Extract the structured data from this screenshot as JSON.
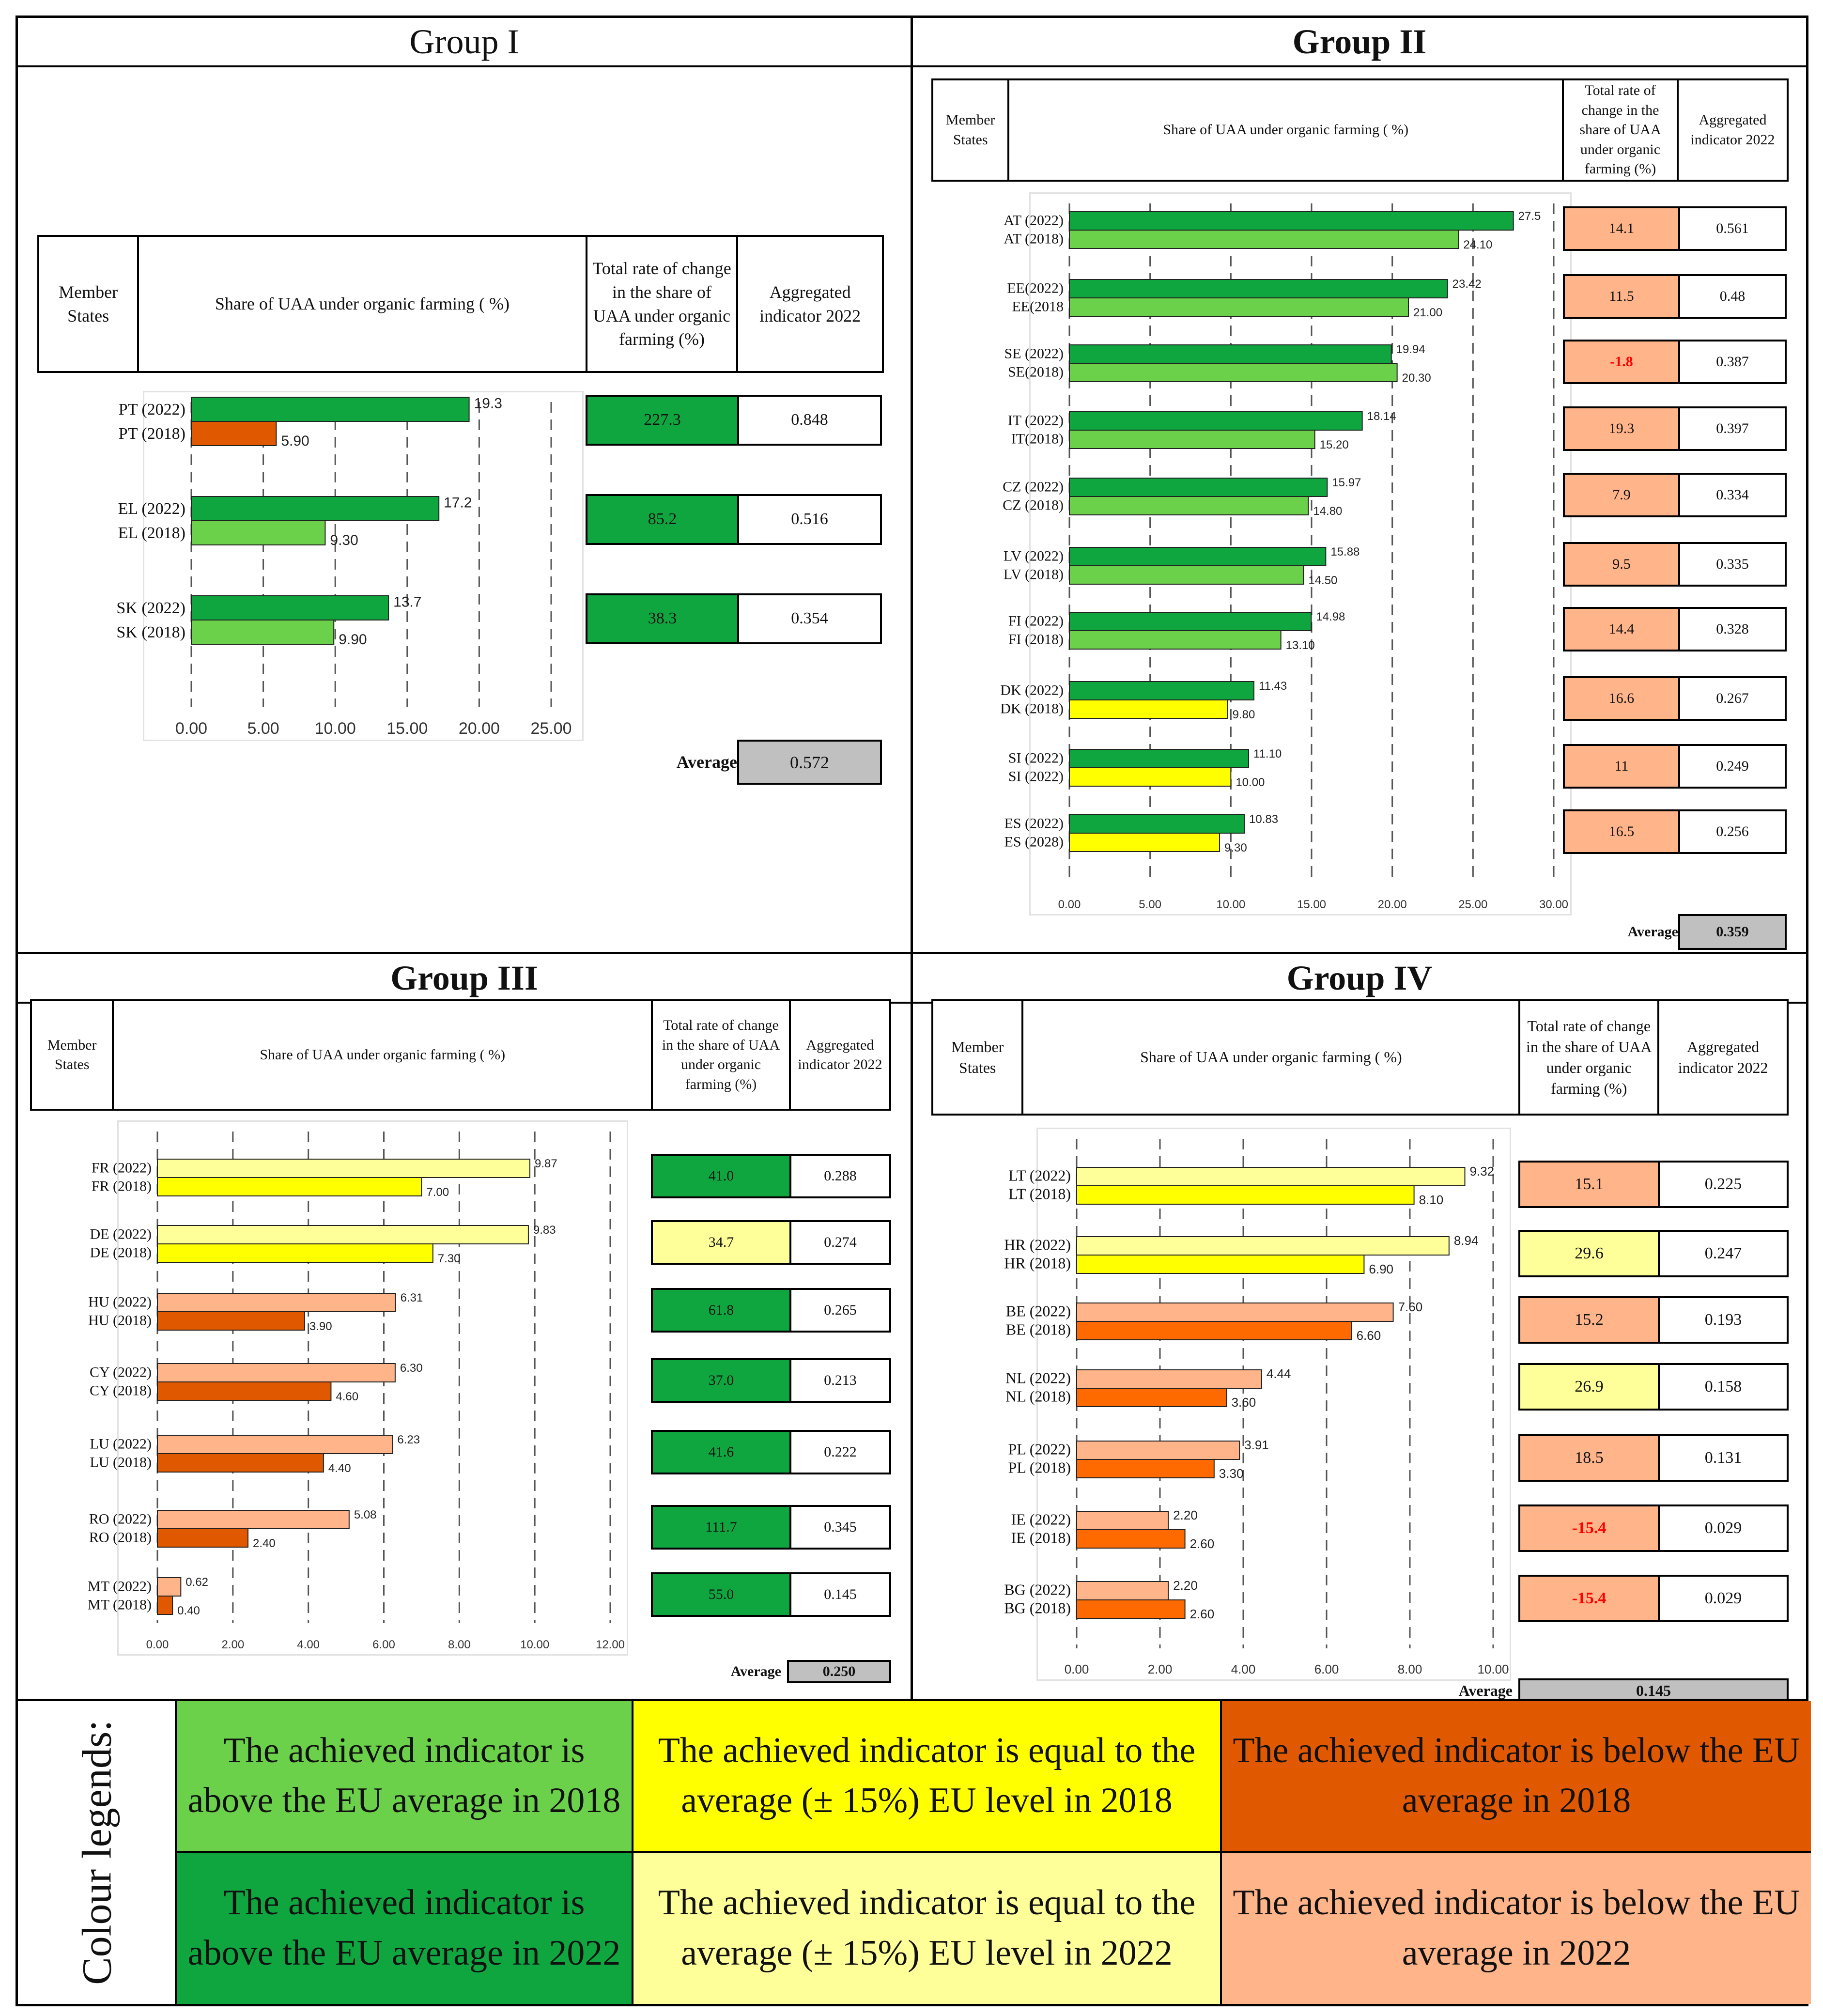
{
  "colors": {
    "above_2018": "#6CD14A",
    "above_2022": "#0FA640",
    "equal_2018": "#FFFF00",
    "equal_2022": "#FFFF99",
    "below_2018": "#E05800",
    "below_2018_g4": "#FF6A00",
    "below_2022": "#FFB489",
    "average_box": "#C0C0C0",
    "negative_text": "#FF0000"
  },
  "table_header": {
    "member": "Member States",
    "share": "Share of UAA under organic farming ( %)",
    "rate": "Total rate of change in the share of UAA under organic farming (%)",
    "aggregated": "Aggregated indicator 2022"
  },
  "chart_data": [
    {
      "type": "bar",
      "title": "Group I",
      "xlim": [
        0,
        25
      ],
      "xticks": [
        "0.00",
        "5.00",
        "10.00",
        "15.00",
        "20.00",
        "25.00"
      ],
      "categories": [
        {
          "l2022": "PT (2022)",
          "l2018": "PT (2018)",
          "v2022": 19.3,
          "v2018": 5.9,
          "t2022": "19.3",
          "t2018": "5.90",
          "c2022": "above_2022",
          "c2018": "below_2018",
          "rate": "227.3",
          "rate_color": "above_2022",
          "agg": "0.848"
        },
        {
          "l2022": "EL (2022)",
          "l2018": "EL (2018)",
          "v2022": 17.2,
          "v2018": 9.3,
          "t2022": "17.2",
          "t2018": "9.30",
          "c2022": "above_2022",
          "c2018": "above_2018",
          "rate": "85.2",
          "rate_color": "above_2022",
          "agg": "0.516"
        },
        {
          "l2022": "SK (2022)",
          "l2018": "SK (2018)",
          "v2022": 13.7,
          "v2018": 9.9,
          "t2022": "13.7",
          "t2018": "9.90",
          "c2022": "above_2022",
          "c2018": "above_2018",
          "rate": "38.3",
          "rate_color": "above_2022",
          "agg": "0.354"
        }
      ],
      "average_label": "Average",
      "average": "0.572"
    },
    {
      "type": "bar",
      "title": "Group II",
      "xlim": [
        0,
        30
      ],
      "xticks": [
        "0.00",
        "5.00",
        "10.00",
        "15.00",
        "20.00",
        "25.00",
        "30.00"
      ],
      "categories": [
        {
          "l2022": "AT (2022)",
          "l2018": "AT (2018)",
          "v2022": 27.5,
          "v2018": 24.1,
          "t2022": "27.5",
          "t2018": "24.10",
          "c2022": "above_2022",
          "c2018": "above_2018",
          "rate": "14.1",
          "rate_color": "below_2022",
          "agg": "0.561"
        },
        {
          "l2022": "EE(2022)",
          "l2018": "EE(2018",
          "v2022": 23.42,
          "v2018": 21.0,
          "t2022": "23.42",
          "t2018": "21.00",
          "c2022": "above_2022",
          "c2018": "above_2018",
          "rate": "11.5",
          "rate_color": "below_2022",
          "agg": "0.48"
        },
        {
          "l2022": "SE (2022)",
          "l2018": "SE(2018)",
          "v2022": 19.94,
          "v2018": 20.3,
          "t2022": "19.94",
          "t2018": "20.30",
          "c2022": "above_2022",
          "c2018": "above_2018",
          "rate": "-1.8",
          "rate_color": "below_2022",
          "agg": "0.387"
        },
        {
          "l2022": "IT (2022)",
          "l2018": "IT(2018)",
          "v2022": 18.14,
          "v2018": 15.2,
          "t2022": "18.14",
          "t2018": "15.20",
          "c2022": "above_2022",
          "c2018": "above_2018",
          "rate": "19.3",
          "rate_color": "below_2022",
          "agg": "0.397"
        },
        {
          "l2022": "CZ (2022)",
          "l2018": "CZ (2018)",
          "v2022": 15.97,
          "v2018": 14.8,
          "t2022": "15.97",
          "t2018": "14.80",
          "c2022": "above_2022",
          "c2018": "above_2018",
          "rate": "7.9",
          "rate_color": "below_2022",
          "agg": "0.334"
        },
        {
          "l2022": "LV (2022)",
          "l2018": "LV (2018)",
          "v2022": 15.88,
          "v2018": 14.5,
          "t2022": "15.88",
          "t2018": "14.50",
          "c2022": "above_2022",
          "c2018": "above_2018",
          "rate": "9.5",
          "rate_color": "below_2022",
          "agg": "0.335"
        },
        {
          "l2022": "FI (2022)",
          "l2018": "FI (2018)",
          "v2022": 14.98,
          "v2018": 13.1,
          "t2022": "14.98",
          "t2018": "13.10",
          "c2022": "above_2022",
          "c2018": "above_2018",
          "rate": "14.4",
          "rate_color": "below_2022",
          "agg": "0.328"
        },
        {
          "l2022": "DK (2022)",
          "l2018": "DK (2018)",
          "v2022": 11.43,
          "v2018": 9.8,
          "t2022": "11.43",
          "t2018": "9.80",
          "c2022": "above_2022",
          "c2018": "equal_2018",
          "rate": "16.6",
          "rate_color": "below_2022",
          "agg": "0.267"
        },
        {
          "l2022": "SI (2022)",
          "l2018": "SI (2022)",
          "v2022": 11.1,
          "v2018": 10.0,
          "t2022": "11.10",
          "t2018": "10.00",
          "c2022": "above_2022",
          "c2018": "equal_2018",
          "rate": "11",
          "rate_color": "below_2022",
          "agg": "0.249"
        },
        {
          "l2022": "ES (2022)",
          "l2018": "ES (2028)",
          "v2022": 10.83,
          "v2018": 9.3,
          "t2022": "10.83",
          "t2018": "9.30",
          "c2022": "above_2022",
          "c2018": "equal_2018",
          "rate": "16.5",
          "rate_color": "below_2022",
          "agg": "0.256"
        }
      ],
      "average_label": "Average",
      "average": "0.359"
    },
    {
      "type": "bar",
      "title": "Group III",
      "xlim": [
        0,
        12
      ],
      "xticks": [
        "0.00",
        "2.00",
        "4.00",
        "6.00",
        "8.00",
        "10.00",
        "12.00"
      ],
      "categories": [
        {
          "l2022": "FR (2022)",
          "l2018": "FR (2018)",
          "v2022": 9.87,
          "v2018": 7.0,
          "t2022": "9.87",
          "t2018": "7.00",
          "c2022": "equal_2022",
          "c2018": "equal_2018",
          "rate": "41.0",
          "rate_color": "above_2022",
          "agg": "0.288"
        },
        {
          "l2022": "DE (2022)",
          "l2018": "DE (2018)",
          "v2022": 9.83,
          "v2018": 7.3,
          "t2022": "9.83",
          "t2018": "7.30",
          "c2022": "equal_2022",
          "c2018": "equal_2018",
          "rate": "34.7",
          "rate_color": "equal_2022",
          "agg": "0.274"
        },
        {
          "l2022": "HU (2022)",
          "l2018": "HU (2018)",
          "v2022": 6.31,
          "v2018": 3.9,
          "t2022": "6.31",
          "t2018": "3.90",
          "c2022": "below_2022",
          "c2018": "below_2018",
          "rate": "61.8",
          "rate_color": "above_2022",
          "agg": "0.265"
        },
        {
          "l2022": "CY (2022)",
          "l2018": "CY (2018)",
          "v2022": 6.3,
          "v2018": 4.6,
          "t2022": "6.30",
          "t2018": "4.60",
          "c2022": "below_2022",
          "c2018": "below_2018",
          "rate": "37.0",
          "rate_color": "above_2022",
          "agg": "0.213"
        },
        {
          "l2022": "LU (2022)",
          "l2018": "LU (2018)",
          "v2022": 6.23,
          "v2018": 4.4,
          "t2022": "6.23",
          "t2018": "4.40",
          "c2022": "below_2022",
          "c2018": "below_2018",
          "rate": "41.6",
          "rate_color": "above_2022",
          "agg": "0.222"
        },
        {
          "l2022": "RO (2022)",
          "l2018": "RO (2018)",
          "v2022": 5.08,
          "v2018": 2.4,
          "t2022": "5.08",
          "t2018": "2.40",
          "c2022": "below_2022",
          "c2018": "below_2018",
          "rate": "111.7",
          "rate_color": "above_2022",
          "agg": "0.345"
        },
        {
          "l2022": "MT (2022)",
          "l2018": "MT (2018)",
          "v2022": 0.62,
          "v2018": 0.4,
          "t2022": "0.62",
          "t2018": "0.40",
          "c2022": "below_2022",
          "c2018": "below_2018",
          "rate": "55.0",
          "rate_color": "above_2022",
          "agg": "0.145"
        }
      ],
      "average_label": "Average",
      "average": "0.250"
    },
    {
      "type": "bar",
      "title": "Group IV",
      "xlim": [
        0,
        10
      ],
      "xticks": [
        "0.00",
        "2.00",
        "4.00",
        "6.00",
        "8.00",
        "10.00"
      ],
      "categories": [
        {
          "l2022": "LT (2022)",
          "l2018": "LT (2018)",
          "v2022": 9.32,
          "v2018": 8.1,
          "t2022": "9.32",
          "t2018": "8.10",
          "c2022": "equal_2022",
          "c2018": "equal_2018",
          "rate": "15.1",
          "rate_color": "below_2022",
          "agg": "0.225"
        },
        {
          "l2022": "HR (2022)",
          "l2018": "HR (2018)",
          "v2022": 8.94,
          "v2018": 6.9,
          "t2022": "8.94",
          "t2018": "6.90",
          "c2022": "equal_2022",
          "c2018": "equal_2018",
          "rate": "29.6",
          "rate_color": "equal_2022",
          "agg": "0.247"
        },
        {
          "l2022": "BE (2022)",
          "l2018": "BE (2018)",
          "v2022": 7.6,
          "v2018": 6.6,
          "t2022": "7.60",
          "t2018": "6.60",
          "c2022": "below_2022",
          "c2018": "below_2018_g4",
          "rate": "15.2",
          "rate_color": "below_2022",
          "agg": "0.193"
        },
        {
          "l2022": "NL (2022)",
          "l2018": "NL (2018)",
          "v2022": 4.44,
          "v2018": 3.6,
          "t2022": "4.44",
          "t2018": "3.60",
          "c2022": "below_2022",
          "c2018": "below_2018_g4",
          "rate": "26.9",
          "rate_color": "equal_2022",
          "agg": "0.158"
        },
        {
          "l2022": "PL (2022)",
          "l2018": "PL (2018)",
          "v2022": 3.91,
          "v2018": 3.3,
          "t2022": "3.91",
          "t2018": "3.30",
          "c2022": "below_2022",
          "c2018": "below_2018_g4",
          "rate": "18.5",
          "rate_color": "below_2022",
          "agg": "0.131"
        },
        {
          "l2022": "IE (2022)",
          "l2018": "IE (2018)",
          "v2022": 2.2,
          "v2018": 2.6,
          "t2022": "2.20",
          "t2018": "2.60",
          "c2022": "below_2022",
          "c2018": "below_2018_g4",
          "rate": "-15.4",
          "rate_color": "below_2022",
          "agg": "0.029"
        },
        {
          "l2022": "BG (2022)",
          "l2018": "BG (2018)",
          "v2022": 2.2,
          "v2018": 2.6,
          "t2022": "2.20",
          "t2018": "2.60",
          "c2022": "below_2022",
          "c2018": "below_2018_g4",
          "rate": "-15.4",
          "rate_color": "below_2022",
          "agg": "0.029"
        }
      ],
      "average_label": "Average",
      "average": "0.145"
    }
  ],
  "legend": {
    "title": "Colour legends:",
    "above_2018": "The achieved indicator is above the EU average in 2018",
    "equal_2018": "The achieved indicator is equal to the average (± 15%) EU level in 2018",
    "below_2018": "The achieved indicator is below the EU average in 2018",
    "above_2022": "The achieved indicator is above the EU average in 2022",
    "equal_2022": "The achieved indicator is equal to the average (± 15%) EU level in 2022",
    "below_2022": "The achieved indicator is below the EU average in 2022"
  }
}
